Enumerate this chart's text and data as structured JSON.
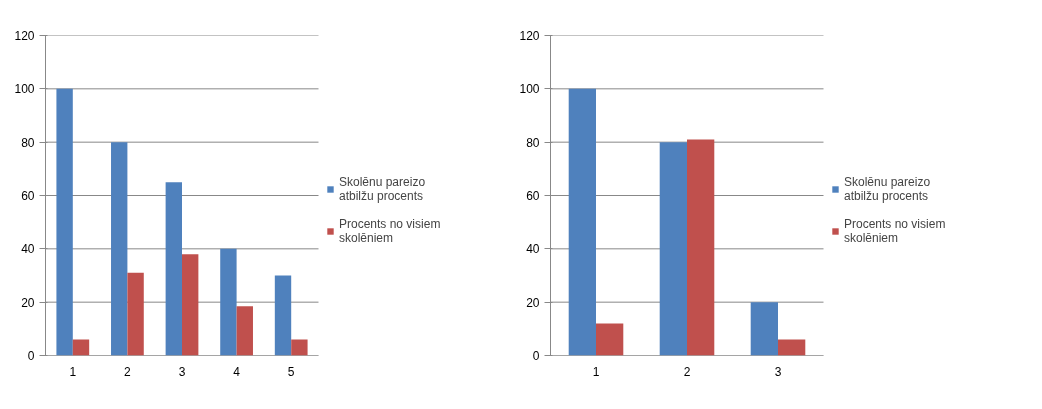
{
  "chart_data": [
    {
      "type": "bar",
      "categories": [
        "1",
        "2",
        "3",
        "4",
        "5"
      ],
      "ylim": [
        0,
        120
      ],
      "yticks": [
        0,
        20,
        40,
        60,
        80,
        100,
        120
      ],
      "grid": "y",
      "legend": "right",
      "series": [
        {
          "name": "Skolēnu pareizo atbilžu procents",
          "color": "#4f81bd",
          "values": [
            100,
            80,
            65,
            40,
            30
          ]
        },
        {
          "name": "Procents no visiem skolēniem",
          "color": "#c0504d",
          "values": [
            6,
            31,
            38,
            18.5,
            6
          ]
        }
      ]
    },
    {
      "type": "bar",
      "categories": [
        "1",
        "2",
        "3"
      ],
      "ylim": [
        0,
        120
      ],
      "yticks": [
        0,
        20,
        40,
        60,
        80,
        100,
        120
      ],
      "grid": "y",
      "legend": "right",
      "series": [
        {
          "name": "Skolēnu pareizo atbilžu procents",
          "color": "#4f81bd",
          "values": [
            100,
            80,
            20
          ]
        },
        {
          "name": "Procents no visiem skolēniem",
          "color": "#c0504d",
          "values": [
            12,
            81,
            6
          ]
        }
      ]
    }
  ]
}
